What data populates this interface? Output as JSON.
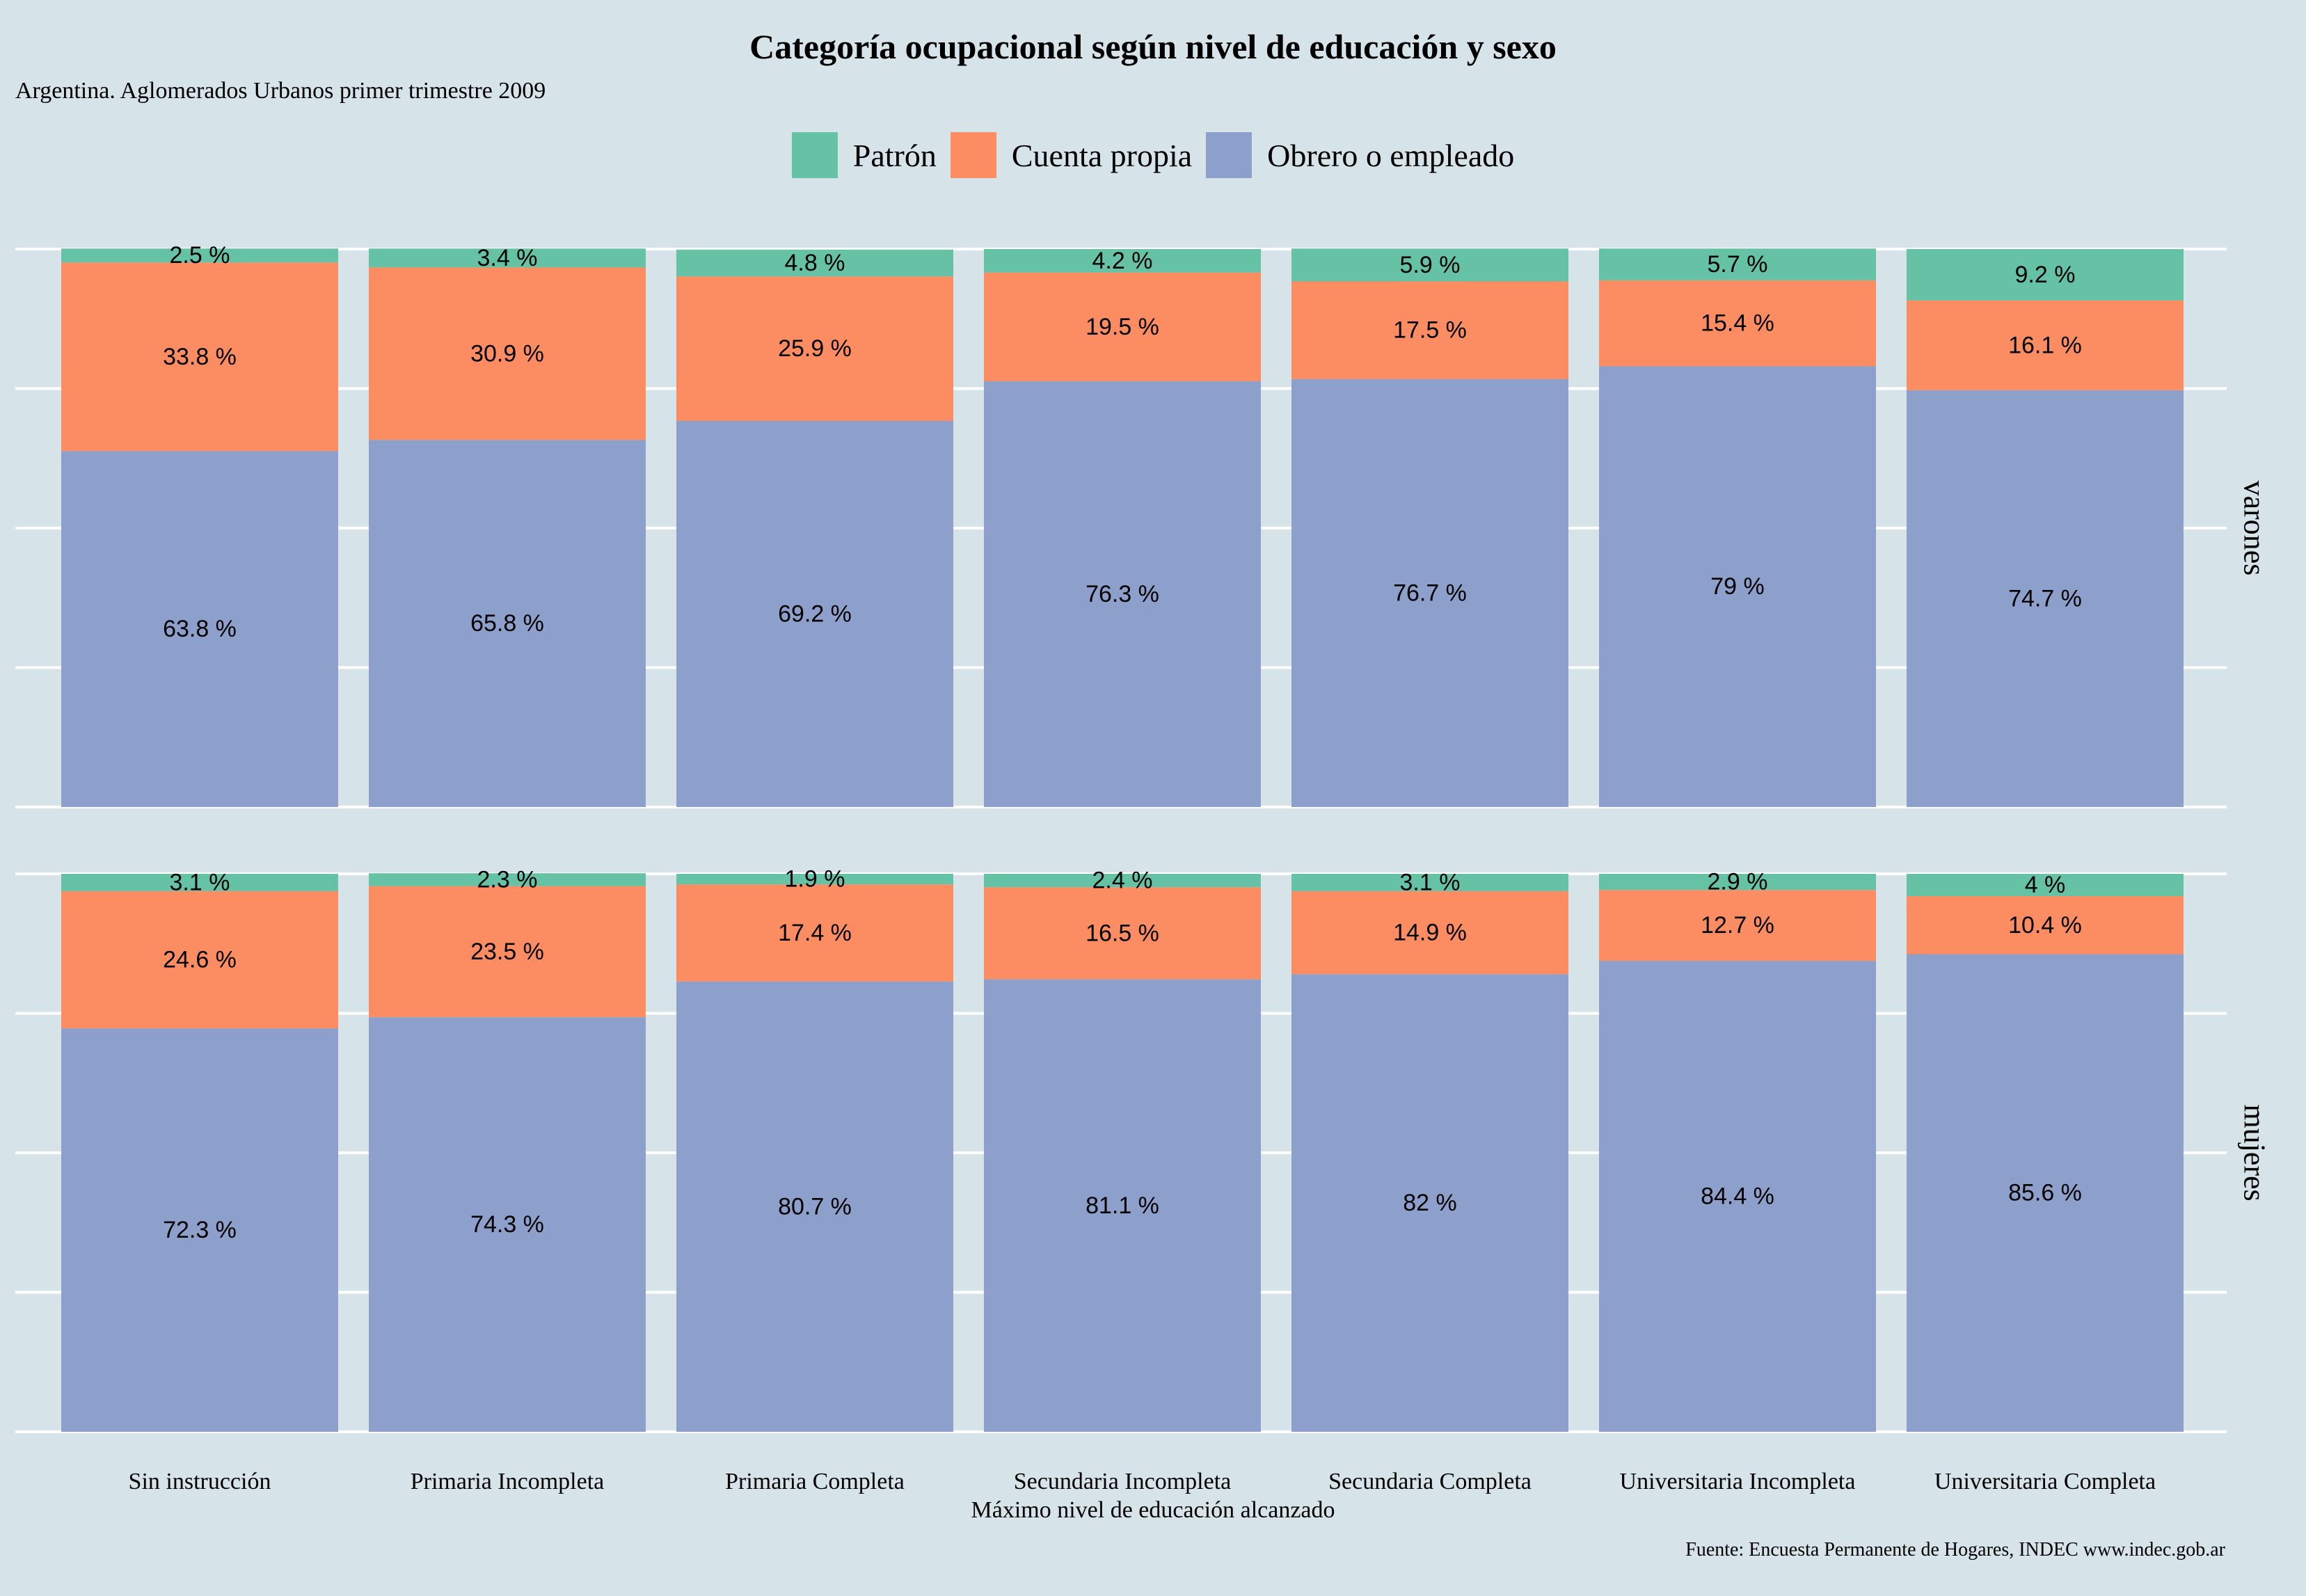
{
  "chart_data": {
    "type": "bar",
    "stacked": true,
    "orientation": "vertical",
    "title": "Categoría ocupacional según nivel de educación y sexo",
    "subtitle": "Argentina. Aglomerados Urbanos primer trimestre 2009",
    "xlabel": "Máximo nivel de educación alcanzado",
    "source": "Fuente: Encuesta Permanente de Hogares, INDEC www.indec.gob.ar",
    "legend_position": "top",
    "ylim": [
      0,
      100
    ],
    "grid": true,
    "categories": [
      "Sin instrucción",
      "Primaria Incompleta",
      "Primaria Completa",
      "Secundaria Incompleta",
      "Secundaria Completa",
      "Universitaria Incompleta",
      "Universitaria Completa"
    ],
    "legend": [
      {
        "name": "Patrón",
        "color": "#66c2a5"
      },
      {
        "name": "Cuenta propia",
        "color": "#fc8d62"
      },
      {
        "name": "Obrero o empleado",
        "color": "#8da0cb"
      }
    ],
    "facets": [
      {
        "name": "varones",
        "series": [
          {
            "name": "Obrero o empleado",
            "color": "#8da0cb",
            "values": [
              63.8,
              65.8,
              69.2,
              76.3,
              76.7,
              79,
              74.7
            ],
            "labels": [
              "63.8 %",
              "65.8 %",
              "69.2 %",
              "76.3 %",
              "76.7 %",
              "79 %",
              "74.7 %"
            ]
          },
          {
            "name": "Cuenta propia",
            "color": "#fc8d62",
            "values": [
              33.8,
              30.9,
              25.9,
              19.5,
              17.5,
              15.4,
              16.1
            ],
            "labels": [
              "33.8 %",
              "30.9 %",
              "25.9 %",
              "19.5 %",
              "17.5 %",
              "15.4 %",
              "16.1 %"
            ]
          },
          {
            "name": "Patrón",
            "color": "#66c2a5",
            "values": [
              2.5,
              3.4,
              4.8,
              4.2,
              5.9,
              5.7,
              9.2
            ],
            "labels": [
              "2.5 %",
              "3.4 %",
              "4.8 %",
              "4.2 %",
              "5.9 %",
              "5.7 %",
              "9.2 %"
            ]
          }
        ]
      },
      {
        "name": "mujeres",
        "series": [
          {
            "name": "Obrero o empleado",
            "color": "#8da0cb",
            "values": [
              72.3,
              74.3,
              80.7,
              81.1,
              82,
              84.4,
              85.6
            ],
            "labels": [
              "72.3 %",
              "74.3 %",
              "80.7 %",
              "81.1 %",
              "82 %",
              "84.4 %",
              "85.6 %"
            ]
          },
          {
            "name": "Cuenta propia",
            "color": "#fc8d62",
            "values": [
              24.6,
              23.5,
              17.4,
              16.5,
              14.9,
              12.7,
              10.4
            ],
            "labels": [
              "24.6 %",
              "23.5 %",
              "17.4 %",
              "16.5 %",
              "14.9 %",
              "12.7 %",
              "10.4 %"
            ]
          },
          {
            "name": "Patrón",
            "color": "#66c2a5",
            "values": [
              3.1,
              2.3,
              1.9,
              2.4,
              3.1,
              2.9,
              4
            ],
            "labels": [
              "3.1 %",
              "2.3 %",
              "1.9 %",
              "2.4 %",
              "3.1 %",
              "2.9 %",
              "4 %"
            ]
          }
        ]
      }
    ]
  }
}
